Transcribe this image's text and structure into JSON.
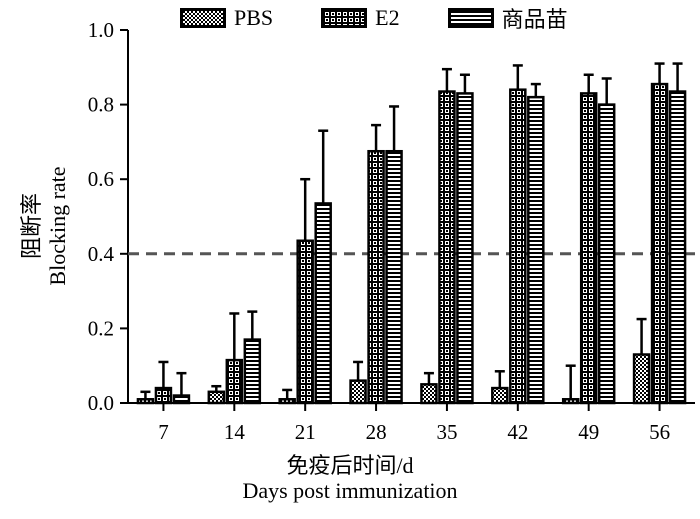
{
  "legend": [
    {
      "label": "PBS",
      "pattern": "checker"
    },
    {
      "label": "E2",
      "pattern": "dots"
    },
    {
      "label": "商品苗",
      "pattern": "stripes"
    }
  ],
  "axis_labels": {
    "y_cn": "阻断率",
    "y_en": "Blocking rate",
    "x_cn": "免疫后时间/d",
    "x_en": "Days post immunization"
  },
  "chart_data": {
    "type": "bar",
    "categories": [
      "7",
      "14",
      "21",
      "28",
      "35",
      "42",
      "49",
      "56"
    ],
    "series": [
      {
        "name": "PBS",
        "values": [
          0.01,
          0.03,
          0.01,
          0.06,
          0.05,
          0.04,
          0.01,
          0.13
        ],
        "errors": [
          0.02,
          0.015,
          0.025,
          0.05,
          0.03,
          0.045,
          0.09,
          0.095
        ]
      },
      {
        "name": "E2",
        "values": [
          0.04,
          0.115,
          0.435,
          0.675,
          0.835,
          0.84,
          0.83,
          0.855
        ],
        "errors": [
          0.07,
          0.125,
          0.165,
          0.07,
          0.06,
          0.065,
          0.05,
          0.055
        ]
      },
      {
        "name": "商品苗",
        "values": [
          0.02,
          0.17,
          0.535,
          0.675,
          0.83,
          0.82,
          0.8,
          0.835
        ],
        "errors": [
          0.06,
          0.075,
          0.195,
          0.12,
          0.05,
          0.035,
          0.07,
          0.075
        ]
      }
    ],
    "threshold": 0.4,
    "ylim": [
      0,
      1.0
    ],
    "yticks": [
      "0.0",
      "0.2",
      "0.4",
      "0.6",
      "0.8",
      "1.0"
    ],
    "grid": false
  }
}
